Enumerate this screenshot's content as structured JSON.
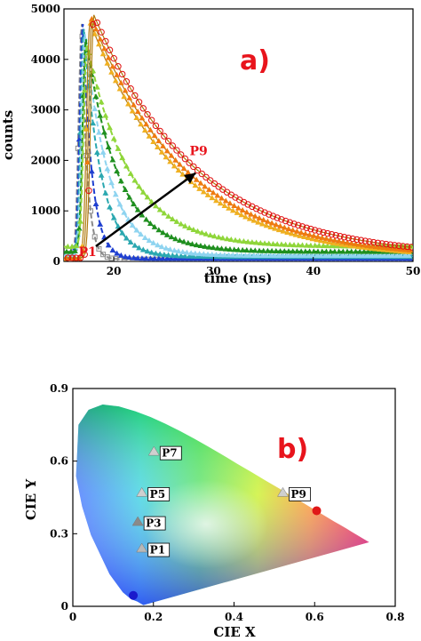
{
  "chart_data": [
    {
      "panel": "a)",
      "type": "scatter",
      "xlabel": "time (ns)",
      "ylabel": "counts",
      "xlim": [
        15,
        50
      ],
      "ylim": [
        0,
        5000
      ],
      "xticks": [
        20,
        30,
        40,
        50
      ],
      "yticks": [
        0,
        1000,
        2000,
        3000,
        4000,
        5000
      ],
      "x_tick_labels": [
        "20",
        "30",
        "40",
        "50"
      ],
      "y_tick_labels": [
        "0",
        "1000",
        "2000",
        "3000",
        "4000",
        "5000"
      ],
      "grid": false,
      "annotations": [
        {
          "text": "P1",
          "x": 17.0,
          "y": 180
        },
        {
          "text": "P9",
          "x": 27.6,
          "y": 2000
        }
      ],
      "arrow": {
        "from": [
          18.2,
          300
        ],
        "to": [
          28.2,
          1750
        ]
      },
      "series": [
        {
          "color": "#8a8a8a",
          "peak_x": 16.8,
          "peak": 4700,
          "tau": 0.55,
          "baseline": 40
        },
        {
          "color": "#1f3fd0",
          "peak_x": 16.9,
          "peak": 4700,
          "tau": 0.9,
          "baseline": 50
        },
        {
          "color": "#2ba8b0",
          "peak_x": 17.0,
          "peak": 4600,
          "tau": 1.7,
          "baseline": 90
        },
        {
          "color": "#8fd4f0",
          "peak_x": 17.1,
          "peak": 4500,
          "tau": 2.4,
          "baseline": 110
        },
        {
          "color": "#1f8f1f",
          "peak_x": 17.2,
          "peak": 4400,
          "tau": 3.2,
          "baseline": 190
        },
        {
          "color": "#8fd63a",
          "peak_x": 17.3,
          "peak": 4300,
          "tau": 4.3,
          "baseline": 290
        },
        {
          "color": "#f0b020",
          "peak_x": 17.6,
          "peak": 4750,
          "tau": 9.0,
          "baseline": 50
        },
        {
          "color": "#f07a10",
          "peak_x": 17.8,
          "peak": 4800,
          "tau": 9.4,
          "baseline": 60
        },
        {
          "color": "#e01010",
          "peak_x": 18.0,
          "peak": 4880,
          "tau": 10.2,
          "baseline": 70
        }
      ]
    },
    {
      "panel": "b)",
      "type": "scatter",
      "xlabel": "CIE X",
      "ylabel": "CIE Y",
      "xlim": [
        0,
        0.8
      ],
      "ylim": [
        0,
        0.9
      ],
      "xticks": [
        0,
        0.2,
        0.4,
        0.6,
        0.8
      ],
      "yticks": [
        0,
        0.3,
        0.6,
        0.9
      ],
      "x_tick_labels": [
        "0",
        "0.2",
        "0.4",
        "0.6",
        "0.8"
      ],
      "y_tick_labels": [
        "0",
        "0.3",
        "0.6",
        "0.9"
      ],
      "grid": false,
      "points": [
        {
          "label": "P1",
          "x": 0.18,
          "y": 0.235,
          "marker": "triangle"
        },
        {
          "label": "P3",
          "x": 0.17,
          "y": 0.345,
          "marker": "triangle"
        },
        {
          "label": "P5",
          "x": 0.18,
          "y": 0.465,
          "marker": "triangle"
        },
        {
          "label": "P7",
          "x": 0.21,
          "y": 0.635,
          "marker": "triangle"
        },
        {
          "label": "P9",
          "x": 0.53,
          "y": 0.465,
          "marker": "triangle"
        }
      ],
      "reference_points": [
        {
          "x": 0.15,
          "y": 0.045,
          "color": "#1a1acc"
        },
        {
          "x": 0.605,
          "y": 0.395,
          "color": "#e01818"
        }
      ]
    }
  ]
}
